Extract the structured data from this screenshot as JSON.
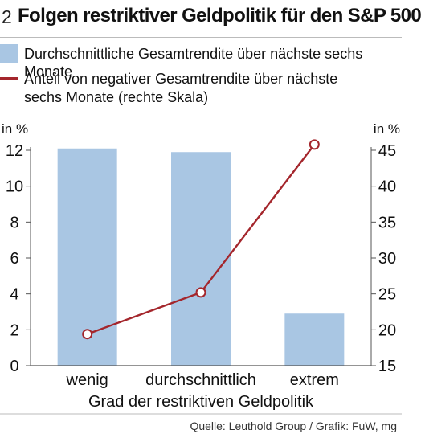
{
  "header": {
    "figure_number": "2",
    "title": "Folgen restriktiver Geldpolitik für den S&P 500"
  },
  "legend": {
    "bar_label": "Durchschnittliche Gesamtrendite über nächste sechs Monate",
    "line_label_1": "Anteil von negativer Gesamtrendite über nächste",
    "line_label_2": "sechs Monate (rechte Skala)"
  },
  "footer": {
    "source": "Quelle: Leuthold Group / Grafik: FuW, mg"
  },
  "chart_data": {
    "type": "bar",
    "categories": [
      "wenig",
      "durchschnittlich",
      "extrem"
    ],
    "series": [
      {
        "type": "bar",
        "axis": "left",
        "values": [
          12.1,
          11.9,
          2.9
        ],
        "color": "#a9c6e3"
      },
      {
        "type": "line",
        "axis": "right",
        "values": [
          19.4,
          25.2,
          45.8
        ],
        "color": "#a4262c"
      }
    ],
    "xlabel": "Grad der restriktiven Geldpolitik",
    "yunit_left": "in %",
    "yunit_right": "in %",
    "ylim_left": [
      0,
      12
    ],
    "ylim_right": [
      15,
      45
    ],
    "yticks_left": [
      "0",
      "2",
      "4",
      "6",
      "8",
      "10",
      "12"
    ],
    "yticks_right": [
      "15",
      "20",
      "25",
      "30",
      "35",
      "40",
      "45"
    ],
    "grid": false
  }
}
